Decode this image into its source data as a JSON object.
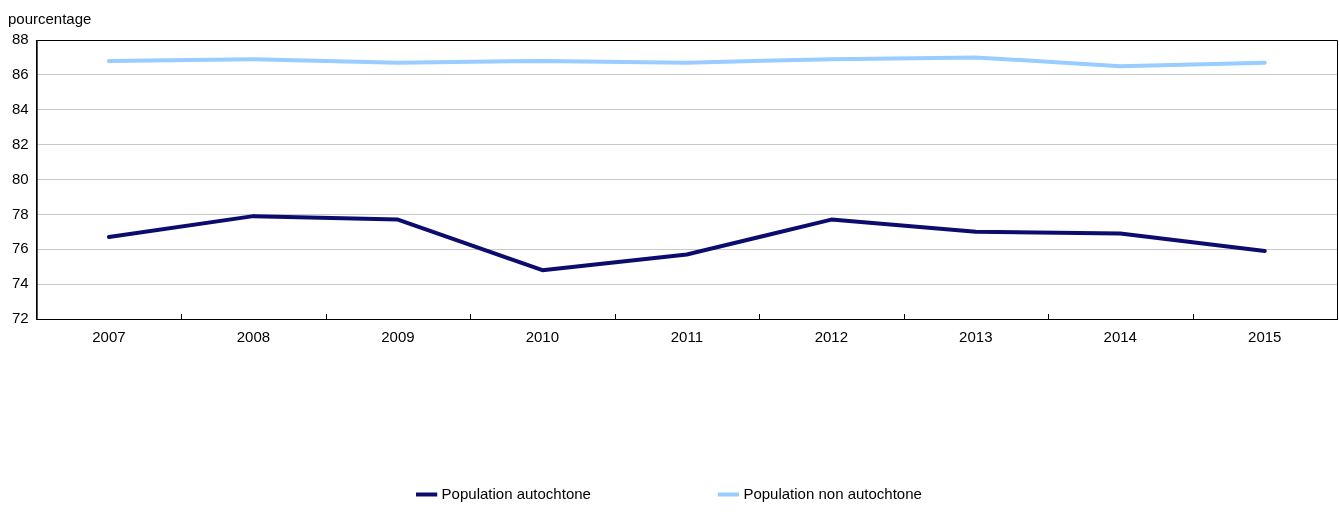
{
  "chart_data": {
    "type": "line",
    "ylabel": "pourcentage",
    "categories": [
      "2007",
      "2008",
      "2009",
      "2010",
      "2011",
      "2012",
      "2013",
      "2014",
      "2015"
    ],
    "series": [
      {
        "name": "Population autochtone",
        "color": "#0c0c6e",
        "values": [
          76.7,
          77.9,
          77.7,
          74.8,
          75.7,
          77.7,
          77.0,
          76.9,
          75.9
        ]
      },
      {
        "name": "Population non autochtone",
        "color": "#99ccff",
        "values": [
          86.8,
          86.9,
          86.7,
          86.8,
          86.7,
          86.9,
          87.0,
          86.5,
          86.7
        ]
      }
    ],
    "ylim": [
      72,
      88
    ],
    "yticks": [
      72,
      74,
      76,
      78,
      80,
      82,
      84,
      86,
      88
    ],
    "grid": "y",
    "legend": "bottom",
    "marker": "none",
    "line_style": "solid"
  }
}
